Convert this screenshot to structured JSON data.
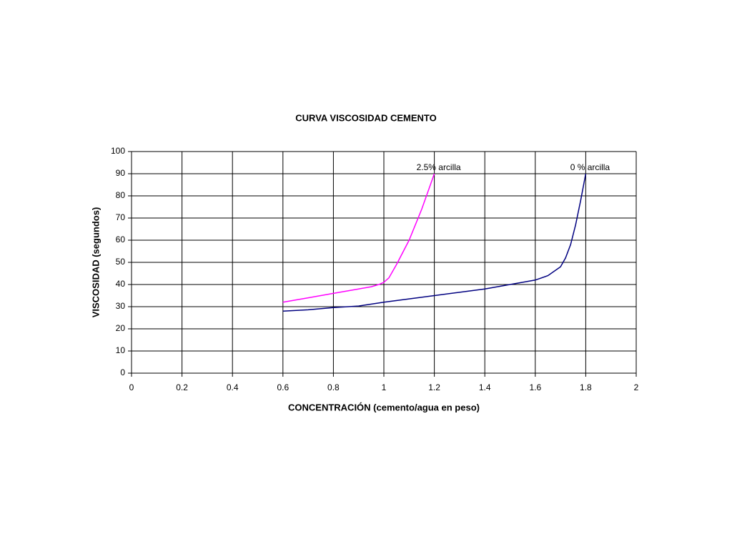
{
  "chart_data": {
    "type": "line",
    "title": "CURVA VISCOSIDAD CEMENTO",
    "x_label": "CONCENTRACIÓN (cemento/agua en peso)",
    "y_label": "VISCOSIDAD (segundos)",
    "xlim": [
      0,
      2
    ],
    "ylim": [
      0,
      100
    ],
    "xticks": [
      0,
      0.2,
      0.4,
      0.6,
      0.8,
      1,
      1.2,
      1.4,
      1.6,
      1.8,
      2
    ],
    "yticks": [
      0,
      10,
      20,
      30,
      40,
      50,
      60,
      70,
      80,
      90,
      100
    ],
    "grid": true,
    "series": [
      {
        "name": "2.5% arcilla",
        "color": "#ff00ff",
        "x": [
          0.6,
          0.7,
          0.8,
          0.9,
          0.95,
          0.98,
          1.0,
          1.02,
          1.05,
          1.1,
          1.15,
          1.2
        ],
        "values": [
          32,
          34,
          36,
          38,
          39,
          40,
          41,
          43,
          49,
          60,
          74,
          90
        ]
      },
      {
        "name": "0 % arcilla",
        "color": "#000080",
        "x": [
          0.6,
          0.7,
          0.8,
          0.9,
          1.0,
          1.1,
          1.2,
          1.3,
          1.4,
          1.5,
          1.6,
          1.65,
          1.7,
          1.72,
          1.74,
          1.76,
          1.78,
          1.8
        ],
        "values": [
          28,
          28.6,
          29.6,
          30.3,
          32,
          33.5,
          35,
          36.5,
          38,
          40,
          42,
          44,
          48,
          52,
          58,
          67,
          78,
          90
        ]
      }
    ]
  }
}
